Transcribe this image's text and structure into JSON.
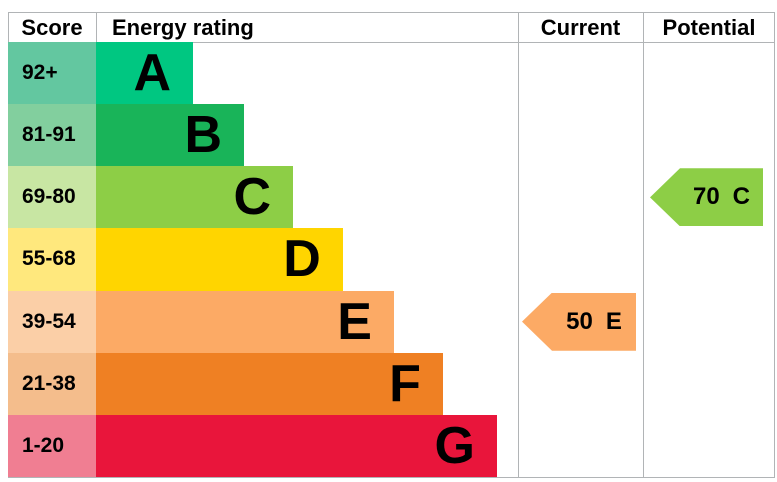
{
  "header": {
    "score_label": "Score",
    "energy_rating_label": "Energy rating",
    "current_label": "Current",
    "potential_label": "Potential"
  },
  "bands": [
    {
      "letter": "A",
      "score_range": "92+",
      "color": "#00c781",
      "tint": "#63c7a0",
      "width_pct": 23.0
    },
    {
      "letter": "B",
      "score_range": "81-91",
      "color": "#19b459",
      "tint": "#82cf9e",
      "width_pct": 35.1
    },
    {
      "letter": "C",
      "score_range": "69-80",
      "color": "#8dce46",
      "tint": "#c8e6a3",
      "width_pct": 46.7
    },
    {
      "letter": "D",
      "score_range": "55-68",
      "color": "#ffd500",
      "tint": "#ffe87d",
      "width_pct": 58.5
    },
    {
      "letter": "E",
      "score_range": "39-54",
      "color": "#fcaa65",
      "tint": "#fbcfa7",
      "width_pct": 70.6
    },
    {
      "letter": "F",
      "score_range": "21-38",
      "color": "#ef8023",
      "tint": "#f4bd8c",
      "width_pct": 82.2
    },
    {
      "letter": "G",
      "score_range": "1-20",
      "color": "#e9153b",
      "tint": "#f07e92",
      "width_pct": 95.0
    }
  ],
  "markers": {
    "current": {
      "value": "50",
      "letter": "E",
      "band_index": 4,
      "color": "#fcaa65"
    },
    "potential": {
      "value": "70",
      "letter": "C",
      "band_index": 2,
      "color": "#8dce46"
    }
  },
  "colors": {
    "border": "#b1b4b6",
    "text": "#000000",
    "background": "#ffffff"
  },
  "chart_data": {
    "type": "bar",
    "orientation": "horizontal",
    "title": "Energy rating",
    "categories": [
      "A",
      "B",
      "C",
      "D",
      "E",
      "F",
      "G"
    ],
    "score_ranges": [
      "92+",
      "81-91",
      "69-80",
      "55-68",
      "39-54",
      "21-38",
      "1-20"
    ],
    "bar_lengths_pct_of_column": [
      23.0,
      35.1,
      46.7,
      58.5,
      70.6,
      82.2,
      95.0
    ],
    "bar_colors": [
      "#00c781",
      "#19b459",
      "#8dce46",
      "#ffd500",
      "#fcaa65",
      "#ef8023",
      "#e9153b"
    ],
    "legend_position": "none",
    "grid": false,
    "annotations": [
      {
        "column": "Current",
        "value": 50,
        "band": "E",
        "color": "#fcaa65"
      },
      {
        "column": "Potential",
        "value": 70,
        "band": "C",
        "color": "#8dce46"
      }
    ]
  }
}
